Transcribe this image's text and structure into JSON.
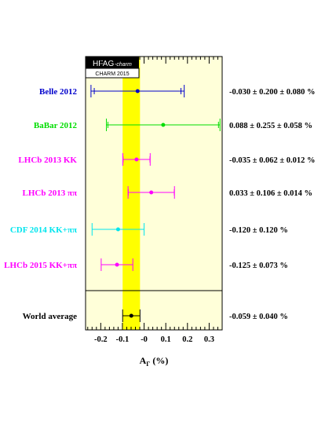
{
  "chart_data": {
    "type": "scatter",
    "badge_top": "HFAG",
    "badge_top_sub": "-charm",
    "badge_bottom": "CHARM 2015",
    "xlabel": "A",
    "xlabel_sub": "Γ",
    "xlabel_unit": "(%)",
    "xlim": [
      -0.27,
      0.36
    ],
    "xticks": [
      -0.2,
      -0.1,
      0,
      0.1,
      0.2,
      0.3
    ],
    "xtick_labels": [
      "-0.2",
      "-0.1",
      "-0",
      "0.1",
      "0.2",
      "0.3"
    ],
    "band": {
      "low": -0.099,
      "high": -0.019,
      "color": "#ffff00"
    },
    "plot_bg": "#ffffd9",
    "measurements": [
      {
        "label": "Belle 2012",
        "value": -0.03,
        "stat_err": 0.2,
        "syst_err": 0.08,
        "err_total": 0.215,
        "color": "#0000cc",
        "result_text": "-0.030 ± 0.200 ± 0.080 %"
      },
      {
        "label": "BaBar 2012",
        "value": 0.088,
        "stat_err": 0.255,
        "syst_err": 0.058,
        "err_total": 0.262,
        "color": "#00dd00",
        "result_text": "0.088 ± 0.255 ± 0.058 %"
      },
      {
        "label": "LHCb 2013 KK",
        "value": -0.035,
        "stat_err": 0.062,
        "syst_err": 0.012,
        "err_total": 0.063,
        "color": "#ff00ff",
        "result_text": "-0.035 ± 0.062 ± 0.012 %"
      },
      {
        "label": "LHCb 2013 ππ",
        "value": 0.033,
        "stat_err": 0.106,
        "syst_err": 0.014,
        "err_total": 0.107,
        "color": "#ff00ff",
        "result_text": "0.033 ± 0.106 ± 0.014 %"
      },
      {
        "label": "CDF 2014 KK+ππ",
        "value": -0.12,
        "stat_err": 0.12,
        "syst_err": null,
        "err_total": 0.12,
        "color": "#00e5ee",
        "result_text": "-0.120 ± 0.120 %"
      },
      {
        "label": "LHCb 2015 KK+ππ",
        "value": -0.125,
        "stat_err": 0.073,
        "syst_err": null,
        "err_total": 0.073,
        "color": "#ff00ff",
        "result_text": "-0.125 ± 0.073 %"
      }
    ],
    "average": {
      "label": "World average",
      "value": -0.059,
      "err": 0.04,
      "color": "#000000",
      "result_text": "-0.059 ± 0.040 %"
    }
  }
}
